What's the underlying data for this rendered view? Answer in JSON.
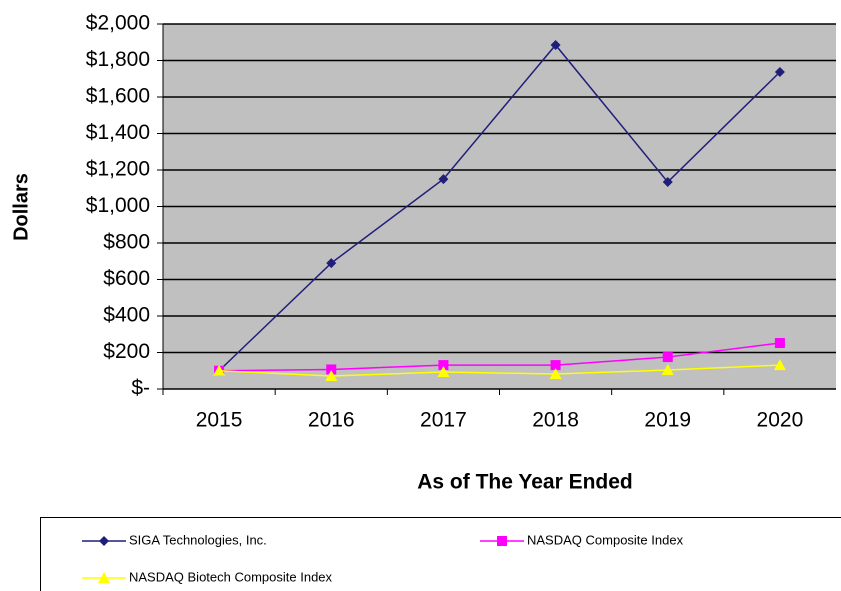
{
  "chart_data": {
    "type": "line",
    "y_label": "Dollars",
    "x_label": "As of The Year Ended",
    "categories": [
      "2015",
      "2016",
      "2017",
      "2018",
      "2019",
      "2020"
    ],
    "series": [
      {
        "name": "SIGA Technologies, Inc.",
        "color": "#1f1f7a",
        "marker": "diamond",
        "values": [
          100,
          690,
          1150,
          1885,
          1134,
          1737
        ]
      },
      {
        "name": "NASDAQ Composite Index",
        "color": "#ff00ff",
        "marker": "square",
        "values": [
          100,
          107,
          131,
          131,
          175,
          252
        ]
      },
      {
        "name": "NASDAQ Biotech Composite Index",
        "color": "#ffff00",
        "marker": "triangle",
        "values": [
          100,
          71,
          93,
          82,
          104,
          131
        ]
      }
    ],
    "ylim": [
      0,
      2000
    ],
    "yticks": [
      {
        "value": 0,
        "label": "$-"
      },
      {
        "value": 200,
        "label": "$200"
      },
      {
        "value": 400,
        "label": "$400"
      },
      {
        "value": 600,
        "label": "$600"
      },
      {
        "value": 800,
        "label": "$800"
      },
      {
        "value": 1000,
        "label": "$1,000"
      },
      {
        "value": 1200,
        "label": "$1,200"
      },
      {
        "value": 1400,
        "label": "$1,400"
      },
      {
        "value": 1600,
        "label": "$1,600"
      },
      {
        "value": 1800,
        "label": "$1,800"
      },
      {
        "value": 2000,
        "label": "$2,000"
      }
    ],
    "grid": true,
    "plot_background": "#c0c0c0",
    "legend": "bottom"
  }
}
